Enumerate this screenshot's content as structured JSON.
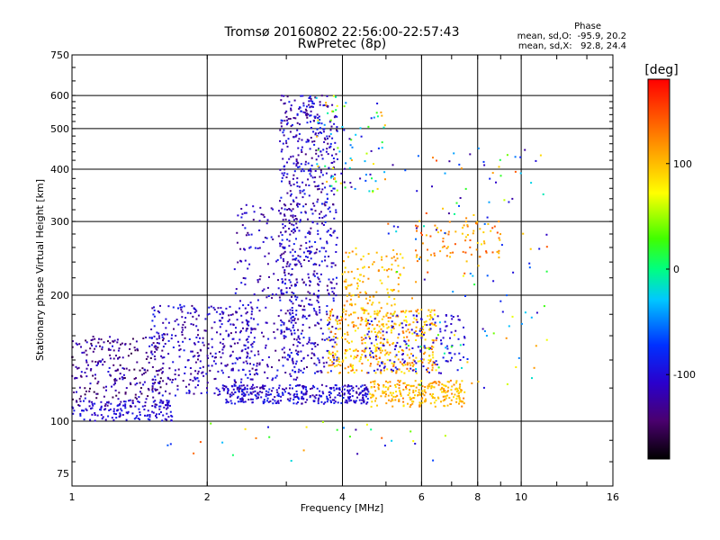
{
  "chart_data": {
    "type": "scatter",
    "title": "Tromsø 20160802 22:56:00-22:57:43",
    "subtitle": "RwPretec (8p)",
    "xlabel": "Frequency [MHz]",
    "ylabel": "Stationary phase Virtual Height [km]",
    "x_scale": "log",
    "y_scale": "log",
    "xlim": [
      1,
      16
    ],
    "ylim": [
      70,
      750
    ],
    "x_ticks": [
      1,
      2,
      4,
      6,
      8,
      10,
      16
    ],
    "y_ticks": [
      75,
      100,
      200,
      300,
      400,
      500,
      600,
      750
    ],
    "grid": true,
    "colorbar": {
      "label": "[deg]",
      "range": [
        -180,
        180
      ],
      "ticks": [
        100,
        0,
        -100
      ],
      "colormap": "rainbow"
    },
    "phase_stats": {
      "heading": "Phase",
      "line_o": "mean, sd,O:  -95.9, 20.2",
      "line_x": "mean, sd,X:   92.8, 24.4"
    },
    "clusters": [
      {
        "f": [
          1.0,
          1.7
        ],
        "h": [
          100,
          112
        ],
        "phase": [
          -120,
          -85
        ],
        "n": 140
      },
      {
        "f": [
          1.0,
          1.6
        ],
        "h": [
          108,
          160
        ],
        "phase": [
          -160,
          -95
        ],
        "n": 260
      },
      {
        "f": [
          1.5,
          2.6
        ],
        "h": [
          115,
          190
        ],
        "phase": [
          -140,
          -85
        ],
        "n": 360
      },
      {
        "f": [
          2.2,
          4.6
        ],
        "h": [
          110,
          122
        ],
        "phase": [
          -130,
          -80
        ],
        "n": 330
      },
      {
        "f": [
          2.3,
          3.2
        ],
        "h": [
          125,
          330
        ],
        "phase": [
          -140,
          -85
        ],
        "n": 220
      },
      {
        "f": [
          2.9,
          3.9
        ],
        "h": [
          130,
          600
        ],
        "phase": [
          -140,
          -80
        ],
        "n": 720
      },
      {
        "f": [
          3.7,
          6.5
        ],
        "h": [
          130,
          185
        ],
        "phase": [
          70,
          140
        ],
        "n": 380
      },
      {
        "f": [
          4.0,
          5.5
        ],
        "h": [
          180,
          260
        ],
        "phase": [
          80,
          135
        ],
        "n": 120
      },
      {
        "f": [
          4.6,
          7.5
        ],
        "h": [
          108,
          125
        ],
        "phase": [
          80,
          130
        ],
        "n": 240
      },
      {
        "f": [
          4.5,
          7.5
        ],
        "h": [
          130,
          180
        ],
        "phase": [
          -120,
          -85
        ],
        "n": 150
      },
      {
        "f": [
          5.8,
          9.0
        ],
        "h": [
          240,
          300
        ],
        "phase": [
          90,
          150
        ],
        "n": 80
      },
      {
        "f": [
          3.5,
          5.0
        ],
        "h": [
          350,
          600
        ],
        "phase": [
          -130,
          120
        ],
        "n": 90
      },
      {
        "f": [
          5.0,
          11.5
        ],
        "h": [
          120,
          450
        ],
        "phase": [
          -130,
          150
        ],
        "n": 140
      },
      {
        "f": [
          1.5,
          8.0
        ],
        "h": [
          80,
          100
        ],
        "phase": [
          -130,
          150
        ],
        "n": 30
      }
    ]
  }
}
